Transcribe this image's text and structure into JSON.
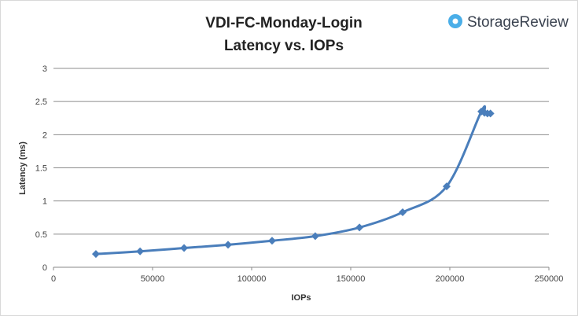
{
  "chart_data": {
    "type": "line",
    "title": [
      "VDI-FC-Monday-Login",
      "Latency vs. IOPs"
    ],
    "xlabel": "IOPs",
    "ylabel": "Latency (ms)",
    "xlim": [
      0,
      250000
    ],
    "ylim": [
      0,
      3
    ],
    "xticks": [
      0,
      50000,
      100000,
      150000,
      200000,
      250000
    ],
    "yticks": [
      0,
      0.5,
      1,
      1.5,
      2,
      2.5,
      3
    ],
    "grid": "horizontal",
    "series": [
      {
        "name": "Latency",
        "color": "#4a7ebb",
        "marker": "diamond",
        "x": [
          21400,
          43700,
          65900,
          88100,
          110300,
          132100,
          154400,
          176200,
          198400,
          215900,
          217500,
          219000,
          220500
        ],
        "y": [
          0.2,
          0.24,
          0.29,
          0.34,
          0.4,
          0.47,
          0.6,
          0.83,
          1.22,
          2.35,
          2.33,
          2.32,
          2.32
        ]
      }
    ]
  },
  "brand": {
    "name": "StorageReview",
    "color": "#4aaee8"
  }
}
